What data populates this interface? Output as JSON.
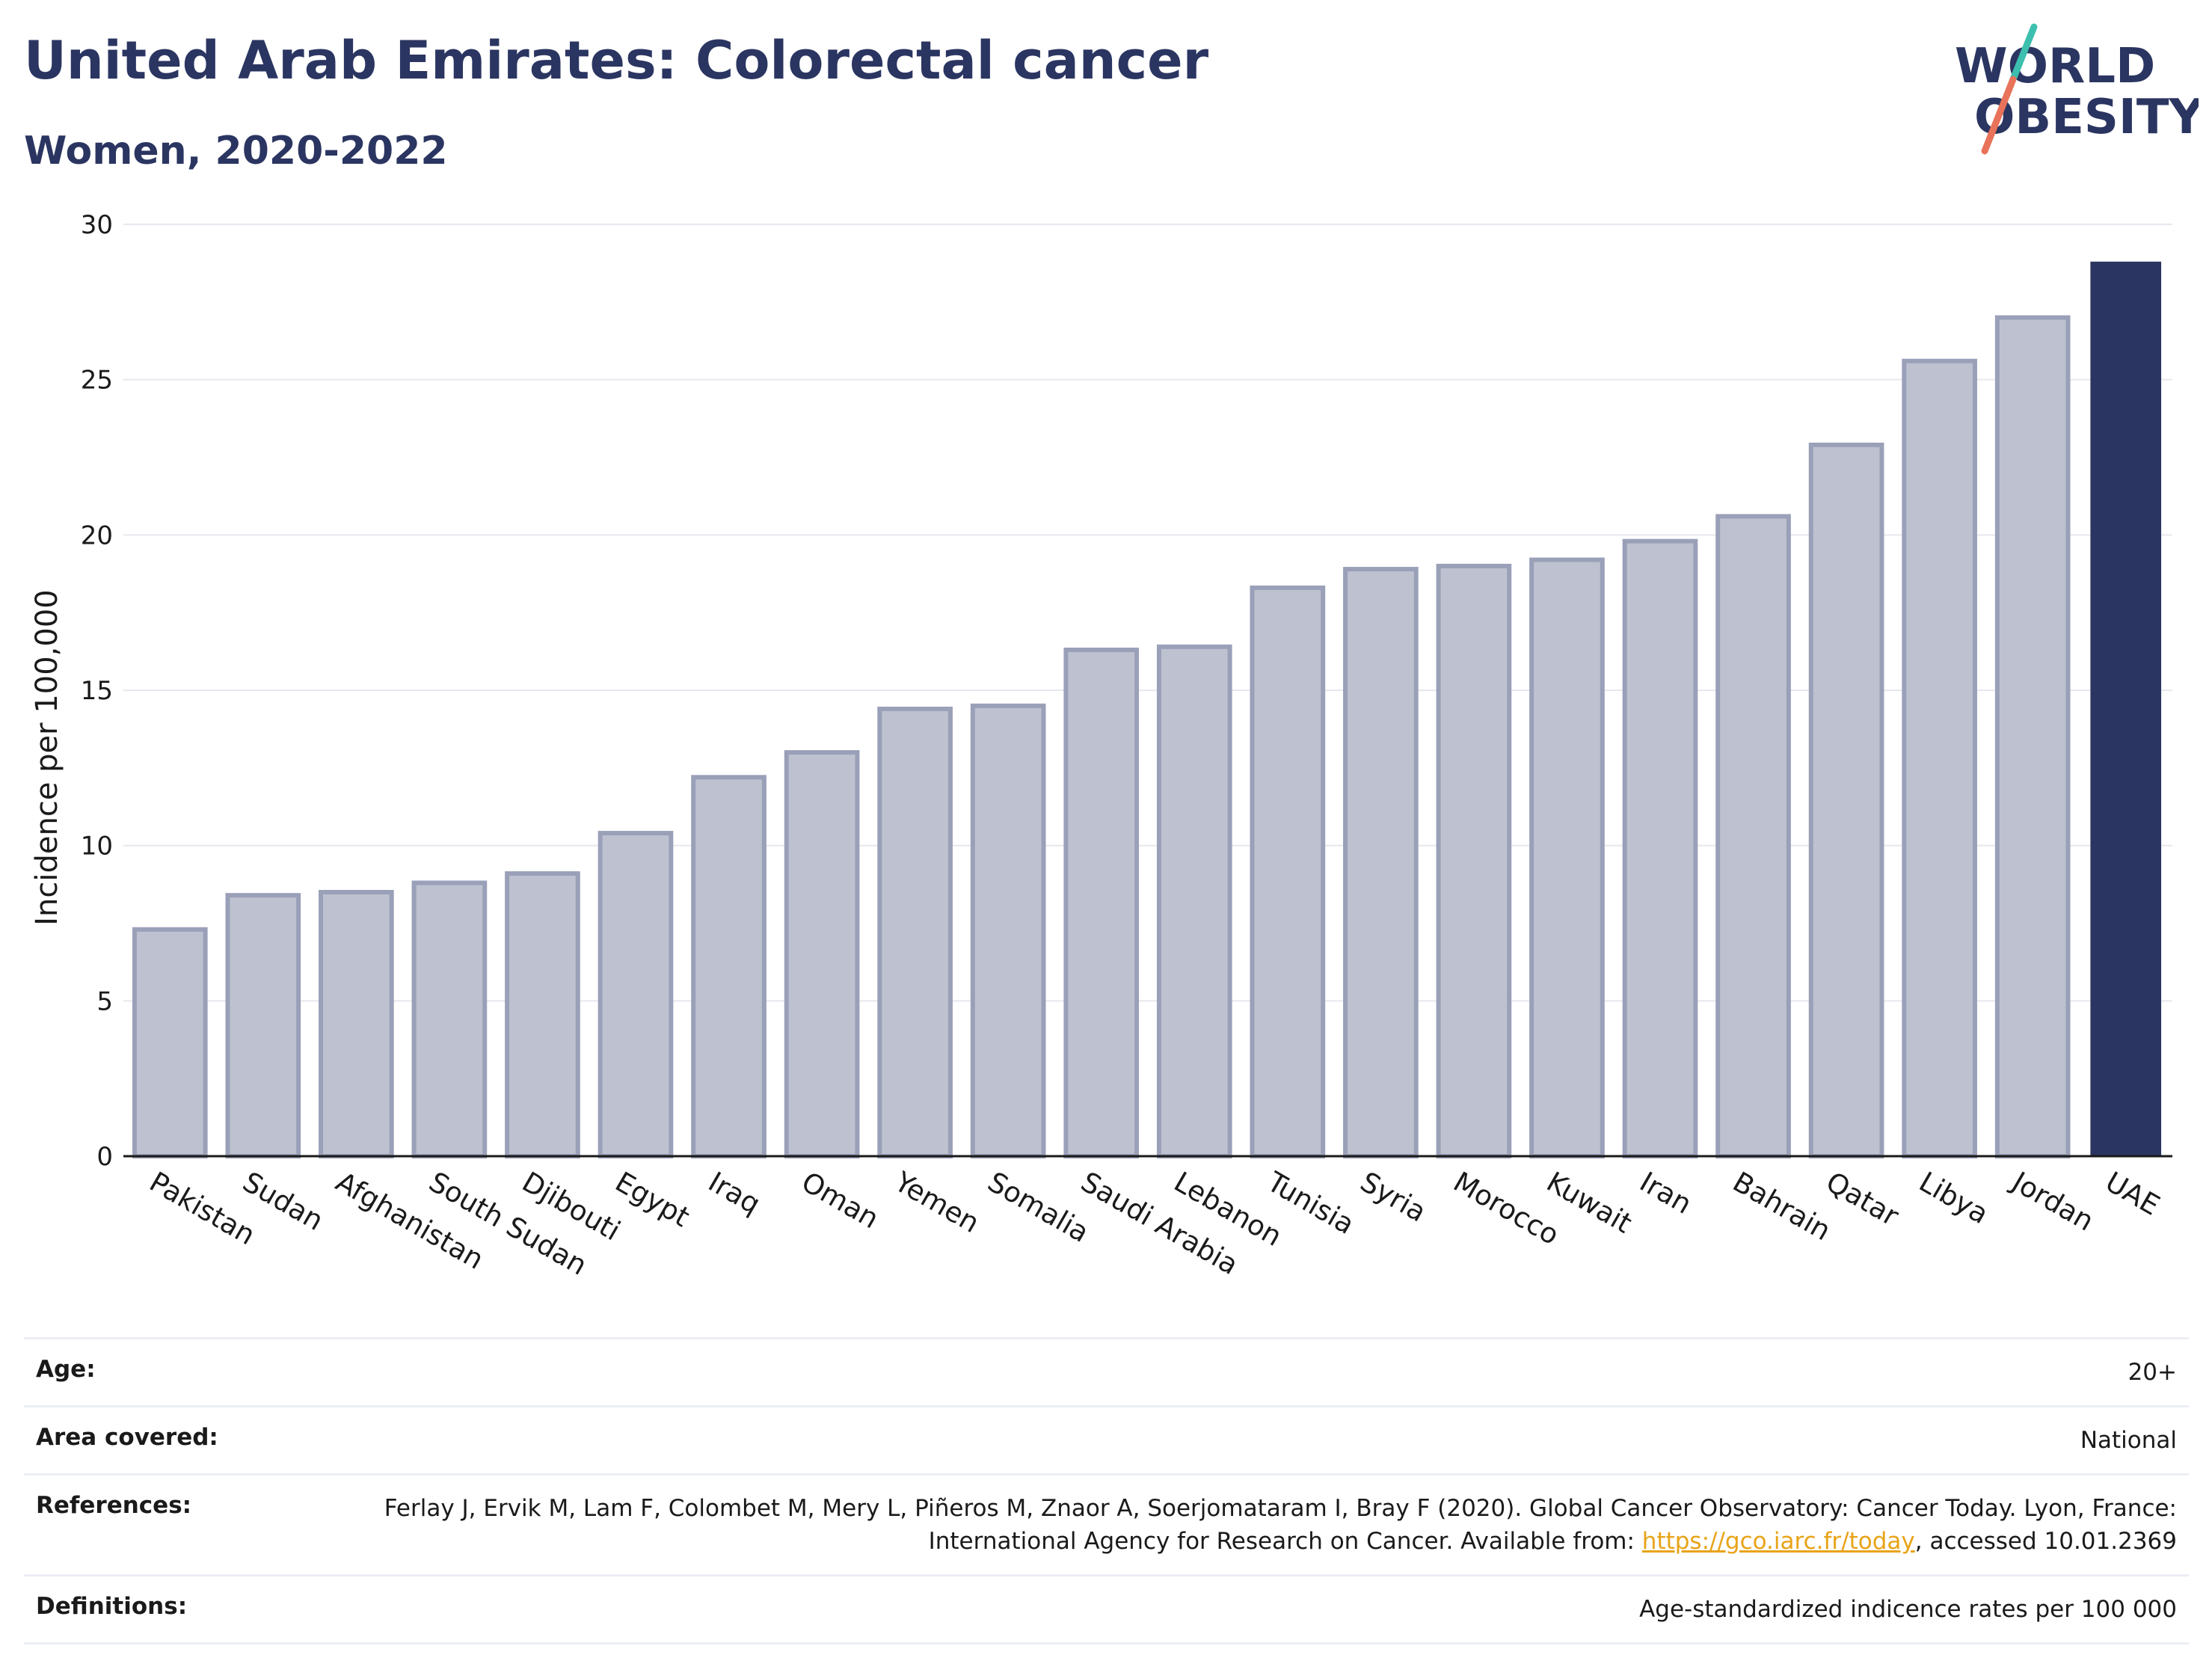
{
  "header": {
    "title": "United Arab Emirates: Colorectal cancer",
    "subtitle": "Women, 2020-2022"
  },
  "logo": {
    "line1": "WORLD",
    "line2": "OBESITY",
    "text_color": "#2b3561",
    "slash_color_top": "#3cbfae",
    "slash_color_bottom": "#e8735a"
  },
  "colors": {
    "highlight_bar": "#2b3561",
    "other_bar_fill": "#bec2d0",
    "other_bar_stroke": "#9aa0b8",
    "gridline": "#e6e8ee",
    "link": "#e8a317"
  },
  "chart_data": {
    "type": "bar",
    "ylabel": "Incidence per 100,000",
    "xlabel": "",
    "ylim": [
      0,
      30
    ],
    "yticks": [
      0,
      5,
      10,
      15,
      20,
      25,
      30
    ],
    "grid": true,
    "highlight_category": "UAE",
    "categories": [
      "Pakistan",
      "Sudan",
      "Afghanistan",
      "South Sudan",
      "Djibouti",
      "Egypt",
      "Iraq",
      "Oman",
      "Yemen",
      "Somalia",
      "Saudi Arabia",
      "Lebanon",
      "Tunisia",
      "Syria",
      "Morocco",
      "Kuwait",
      "Iran",
      "Bahrain",
      "Qatar",
      "Libya",
      "Jordan",
      "UAE"
    ],
    "values": [
      7.3,
      8.4,
      8.5,
      8.8,
      9.1,
      10.4,
      12.2,
      13.0,
      14.4,
      14.5,
      16.3,
      16.4,
      18.3,
      18.9,
      19.0,
      19.2,
      19.8,
      20.6,
      22.9,
      25.6,
      27.0,
      28.8
    ]
  },
  "info": {
    "age_label": "Age:",
    "age_value": "20+",
    "area_label": "Area covered:",
    "area_value": "National",
    "references_label": "References:",
    "references_text_1": "Ferlay J, Ervik M, Lam F, Colombet M, Mery L, Piñeros M, Znaor A, Soerjomataram I, Bray F (2020). Global Cancer Observatory: Cancer Today. Lyon, France: International Agency for Research on Cancer. Available from: ",
    "references_link": "https://gco.iarc.fr/today",
    "references_text_2": ", accessed 10.01.2369",
    "definitions_label": "Definitions:",
    "definitions_value": "Age-standardized indicence rates per 100 000"
  }
}
